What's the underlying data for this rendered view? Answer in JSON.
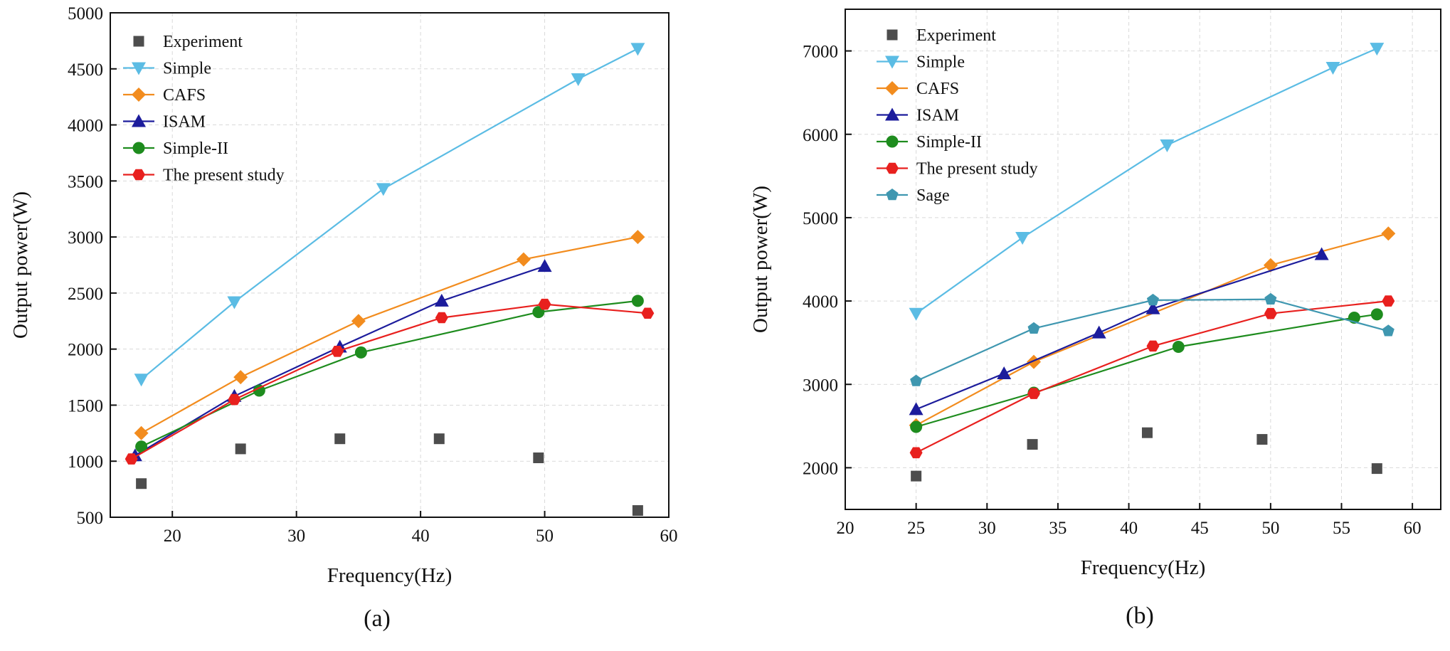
{
  "chart_data": [
    {
      "type": "line",
      "panel_label": "(a)",
      "xlabel": "Frequency(Hz)",
      "ylabel": "Output power(W)",
      "xlim": [
        15,
        60
      ],
      "ylim": [
        500,
        5000
      ],
      "xticks": [
        20,
        30,
        40,
        50,
        60
      ],
      "yticks": [
        500,
        1000,
        1500,
        2000,
        2500,
        3000,
        3500,
        4000,
        4500,
        5000
      ],
      "grid": true,
      "legend_position": "top-left",
      "series": [
        {
          "name": "Experiment",
          "marker": "square",
          "color": "#4d4d4d",
          "line": false,
          "x": [
            17.5,
            25.5,
            33.5,
            41.5,
            49.5,
            57.5
          ],
          "y": [
            800,
            1110,
            1200,
            1200,
            1030,
            560
          ]
        },
        {
          "name": "Simple",
          "marker": "triangle-down",
          "color": "#5bbce4",
          "line": true,
          "x": [
            17.5,
            25,
            37,
            52.7,
            57.5
          ],
          "y": [
            1730,
            2420,
            3430,
            4410,
            4680
          ]
        },
        {
          "name": "CAFS",
          "marker": "diamond",
          "color": "#f28c1e",
          "line": true,
          "x": [
            17.5,
            25.5,
            35,
            48.3,
            57.5
          ],
          "y": [
            1250,
            1750,
            2250,
            2800,
            3000
          ]
        },
        {
          "name": "ISAM",
          "marker": "triangle-up",
          "color": "#1c1c9c",
          "line": true,
          "x": [
            17,
            25,
            33.5,
            41.7,
            50
          ],
          "y": [
            1050,
            1580,
            2020,
            2430,
            2740
          ]
        },
        {
          "name": "Simple-II",
          "marker": "circle",
          "color": "#1e8c1e",
          "line": true,
          "x": [
            17.5,
            27,
            35.2,
            49.5,
            57.5
          ],
          "y": [
            1130,
            1630,
            1970,
            2330,
            2430
          ]
        },
        {
          "name": "The present study",
          "marker": "hexagon",
          "color": "#e8201e",
          "line": true,
          "x": [
            16.7,
            25,
            33.3,
            41.7,
            50,
            58.3
          ],
          "y": [
            1020,
            1550,
            1980,
            2280,
            2400,
            2320
          ]
        }
      ]
    },
    {
      "type": "line",
      "panel_label": "(b)",
      "xlabel": "Frequency(Hz)",
      "ylabel": "Output power(W)",
      "xlim": [
        20,
        62
      ],
      "ylim": [
        1500,
        7500
      ],
      "xticks": [
        20,
        25,
        30,
        35,
        40,
        45,
        50,
        55,
        60
      ],
      "yticks": [
        2000,
        3000,
        4000,
        5000,
        6000,
        7000
      ],
      "grid": true,
      "legend_position": "top-left",
      "series": [
        {
          "name": "Experiment",
          "marker": "square",
          "color": "#4d4d4d",
          "line": false,
          "x": [
            25,
            33.2,
            41.3,
            49.4,
            57.5
          ],
          "y": [
            1900,
            2280,
            2420,
            2340,
            1990
          ]
        },
        {
          "name": "Simple",
          "marker": "triangle-down",
          "color": "#5bbce4",
          "line": true,
          "x": [
            25,
            32.5,
            42.7,
            54.4,
            57.5
          ],
          "y": [
            3850,
            4760,
            5870,
            6800,
            7030
          ]
        },
        {
          "name": "CAFS",
          "marker": "diamond",
          "color": "#f28c1e",
          "line": true,
          "x": [
            25,
            33.3,
            50,
            58.3
          ],
          "y": [
            2510,
            3270,
            4430,
            4810
          ]
        },
        {
          "name": "ISAM",
          "marker": "triangle-up",
          "color": "#1c1c9c",
          "line": true,
          "x": [
            25,
            31.2,
            37.9,
            41.7,
            53.6
          ],
          "y": [
            2700,
            3130,
            3620,
            3910,
            4560
          ]
        },
        {
          "name": "Simple-II",
          "marker": "circle",
          "color": "#1e8c1e",
          "line": true,
          "x": [
            25,
            33.3,
            43.5,
            55.9,
            57.5
          ],
          "y": [
            2490,
            2900,
            3450,
            3800,
            3840
          ]
        },
        {
          "name": "The present study",
          "marker": "hexagon",
          "color": "#e8201e",
          "line": true,
          "x": [
            25,
            33.3,
            41.7,
            50,
            58.3
          ],
          "y": [
            2180,
            2890,
            3460,
            3850,
            4000
          ]
        },
        {
          "name": "Sage",
          "marker": "pentagon",
          "color": "#3f97b0",
          "line": true,
          "x": [
            25,
            33.3,
            41.7,
            50,
            58.3
          ],
          "y": [
            3040,
            3670,
            4010,
            4020,
            3640
          ]
        }
      ]
    }
  ]
}
